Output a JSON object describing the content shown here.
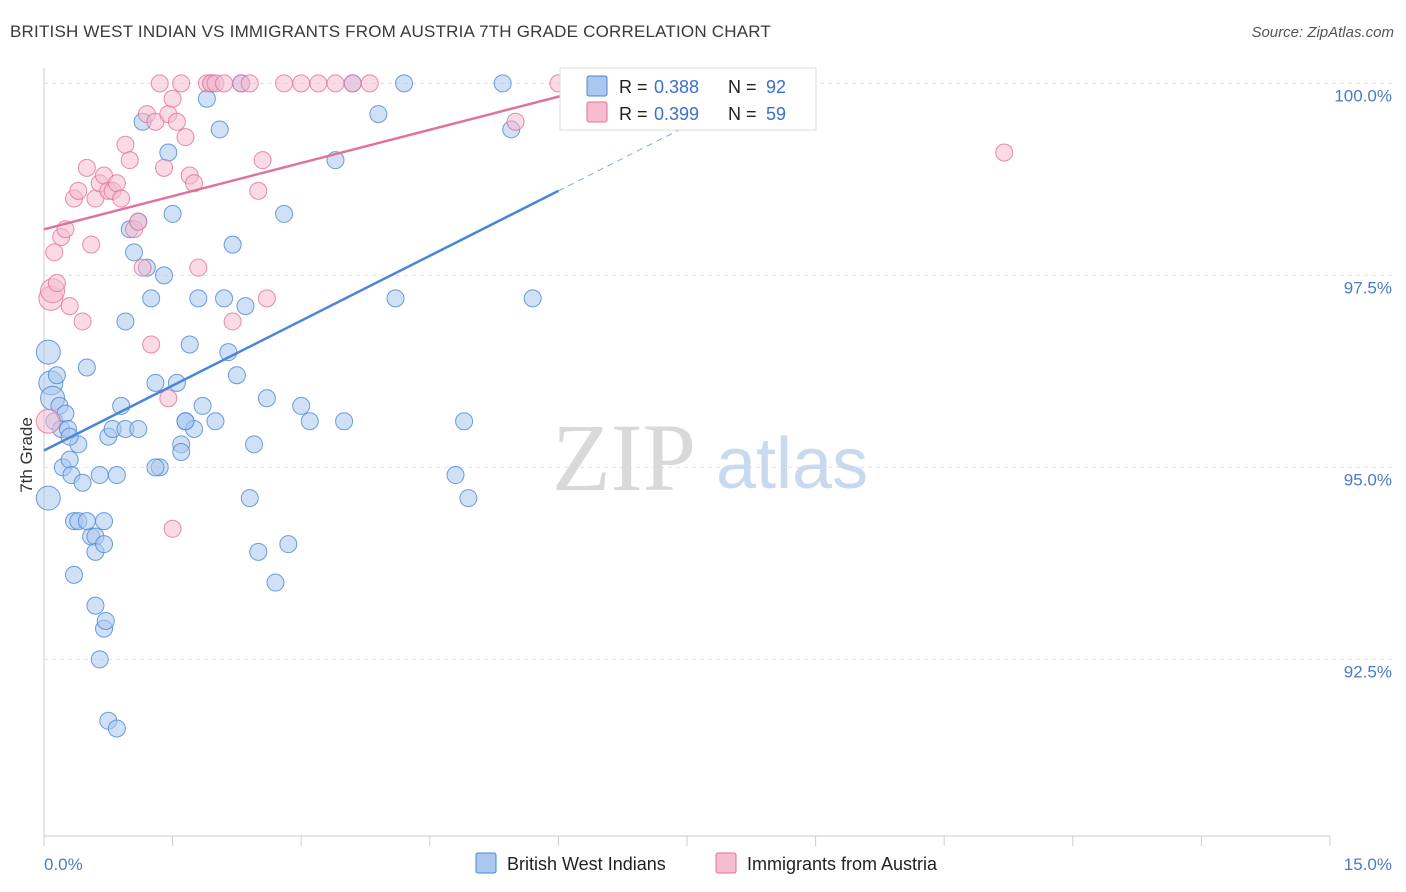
{
  "title": "BRITISH WEST INDIAN VS IMMIGRANTS FROM AUSTRIA 7TH GRADE CORRELATION CHART",
  "source": "Source: ZipAtlas.com",
  "watermark": {
    "zip": "ZIP",
    "atlas": "atlas"
  },
  "chart_data": {
    "type": "scatter",
    "title": "BRITISH WEST INDIAN VS IMMIGRANTS FROM AUSTRIA 7TH GRADE CORRELATION CHART",
    "xlabel": "",
    "ylabel": "7th Grade",
    "xlim": [
      0.0,
      15.0
    ],
    "ylim": [
      90.2,
      100.2
    ],
    "x_tick_labels": {
      "left": "0.0%",
      "right": "15.0%"
    },
    "y_ticks": [
      {
        "value": 100.0,
        "label": "100.0%"
      },
      {
        "value": 97.5,
        "label": "97.5%"
      },
      {
        "value": 95.0,
        "label": "95.0%"
      },
      {
        "value": 92.5,
        "label": "92.5%"
      }
    ],
    "legend_position": "top-center",
    "series": [
      {
        "name": "British West Indians",
        "color": "#4a86d8",
        "fill": "#aac8ee",
        "R": "0.388",
        "N": "92",
        "trend": {
          "x0": 0.0,
          "y0": 95.22,
          "x1": 6.0,
          "y1": 98.6,
          "dash_to_x": 8.2
        },
        "points": [
          [
            0.05,
            96.5
          ],
          [
            0.08,
            96.1
          ],
          [
            0.1,
            95.9
          ],
          [
            0.12,
            95.6
          ],
          [
            0.15,
            96.2
          ],
          [
            0.18,
            95.8
          ],
          [
            0.2,
            95.5
          ],
          [
            0.22,
            95.0
          ],
          [
            0.25,
            95.7
          ],
          [
            0.28,
            95.5
          ],
          [
            0.3,
            95.1
          ],
          [
            0.32,
            94.9
          ],
          [
            0.35,
            94.3
          ],
          [
            0.4,
            94.3
          ],
          [
            0.45,
            94.8
          ],
          [
            0.5,
            96.3
          ],
          [
            0.55,
            94.1
          ],
          [
            0.6,
            94.1
          ],
          [
            0.65,
            94.9
          ],
          [
            0.7,
            94.3
          ],
          [
            0.75,
            95.4
          ],
          [
            0.8,
            95.5
          ],
          [
            0.85,
            94.9
          ],
          [
            0.9,
            95.8
          ],
          [
            0.95,
            96.9
          ],
          [
            1.0,
            98.1
          ],
          [
            1.05,
            97.8
          ],
          [
            1.1,
            98.2
          ],
          [
            1.15,
            99.5
          ],
          [
            1.2,
            97.6
          ],
          [
            1.25,
            97.2
          ],
          [
            1.3,
            96.1
          ],
          [
            1.35,
            95.0
          ],
          [
            1.4,
            97.5
          ],
          [
            1.45,
            99.1
          ],
          [
            1.5,
            98.3
          ],
          [
            1.55,
            96.1
          ],
          [
            1.6,
            95.3
          ],
          [
            1.65,
            95.6
          ],
          [
            1.7,
            96.6
          ],
          [
            1.75,
            95.5
          ],
          [
            1.8,
            97.2
          ],
          [
            1.85,
            95.8
          ],
          [
            1.9,
            99.8
          ],
          [
            1.95,
            100.0
          ],
          [
            2.0,
            95.6
          ],
          [
            2.05,
            99.4
          ],
          [
            2.1,
            97.2
          ],
          [
            2.15,
            96.5
          ],
          [
            2.2,
            97.9
          ],
          [
            2.25,
            96.2
          ],
          [
            2.3,
            100.0
          ],
          [
            2.35,
            97.1
          ],
          [
            2.4,
            94.6
          ],
          [
            2.45,
            95.3
          ],
          [
            2.5,
            93.9
          ],
          [
            2.6,
            95.9
          ],
          [
            2.7,
            93.5
          ],
          [
            2.8,
            98.3
          ],
          [
            2.85,
            94.0
          ],
          [
            3.0,
            95.8
          ],
          [
            3.1,
            95.6
          ],
          [
            3.4,
            99.0
          ],
          [
            3.5,
            95.6
          ],
          [
            3.6,
            100.0
          ],
          [
            3.9,
            99.6
          ],
          [
            4.1,
            97.2
          ],
          [
            4.2,
            100.0
          ],
          [
            4.8,
            94.9
          ],
          [
            4.9,
            95.6
          ],
          [
            4.95,
            94.6
          ],
          [
            5.35,
            100.0
          ],
          [
            5.45,
            99.4
          ],
          [
            5.7,
            97.2
          ],
          [
            0.35,
            93.6
          ],
          [
            0.6,
            93.2
          ],
          [
            0.7,
            92.9
          ],
          [
            0.65,
            92.5
          ],
          [
            0.72,
            93.0
          ],
          [
            0.75,
            91.7
          ],
          [
            0.85,
            91.6
          ],
          [
            0.95,
            95.5
          ],
          [
            1.1,
            95.5
          ],
          [
            1.3,
            95.0
          ],
          [
            1.6,
            95.2
          ],
          [
            1.65,
            95.6
          ],
          [
            0.5,
            94.3
          ],
          [
            0.4,
            95.3
          ],
          [
            0.3,
            95.4
          ],
          [
            0.6,
            93.9
          ],
          [
            0.7,
            94.0
          ],
          [
            0.05,
            94.6
          ]
        ]
      },
      {
        "name": "Immigrants from Austria",
        "color": "#e0729a",
        "fill": "#f6bcd0",
        "R": "0.399",
        "N": "59",
        "trend": {
          "x0": 0.0,
          "y0": 98.1,
          "x1": 6.6,
          "y1": 100.0
        },
        "points": [
          [
            0.05,
            95.6
          ],
          [
            0.08,
            97.2
          ],
          [
            0.1,
            97.3
          ],
          [
            0.12,
            97.8
          ],
          [
            0.15,
            97.4
          ],
          [
            0.2,
            98.0
          ],
          [
            0.25,
            98.1
          ],
          [
            0.3,
            97.1
          ],
          [
            0.35,
            98.5
          ],
          [
            0.4,
            98.6
          ],
          [
            0.45,
            96.9
          ],
          [
            0.5,
            98.9
          ],
          [
            0.55,
            97.9
          ],
          [
            0.6,
            98.5
          ],
          [
            0.65,
            98.7
          ],
          [
            0.7,
            98.8
          ],
          [
            0.75,
            98.6
          ],
          [
            0.8,
            98.6
          ],
          [
            0.85,
            98.7
          ],
          [
            0.9,
            98.5
          ],
          [
            0.95,
            99.2
          ],
          [
            1.0,
            99.0
          ],
          [
            1.05,
            98.1
          ],
          [
            1.1,
            98.2
          ],
          [
            1.15,
            97.6
          ],
          [
            1.2,
            99.6
          ],
          [
            1.25,
            96.6
          ],
          [
            1.3,
            99.5
          ],
          [
            1.35,
            100.0
          ],
          [
            1.4,
            98.9
          ],
          [
            1.45,
            99.6
          ],
          [
            1.5,
            99.8
          ],
          [
            1.55,
            99.5
          ],
          [
            1.6,
            100.0
          ],
          [
            1.65,
            99.3
          ],
          [
            1.7,
            98.8
          ],
          [
            1.75,
            98.7
          ],
          [
            1.8,
            97.6
          ],
          [
            1.9,
            100.0
          ],
          [
            1.95,
            100.0
          ],
          [
            2.0,
            100.0
          ],
          [
            2.1,
            100.0
          ],
          [
            2.2,
            96.9
          ],
          [
            2.3,
            100.0
          ],
          [
            2.4,
            100.0
          ],
          [
            2.5,
            98.6
          ],
          [
            2.55,
            99.0
          ],
          [
            2.6,
            97.2
          ],
          [
            2.8,
            100.0
          ],
          [
            3.0,
            100.0
          ],
          [
            3.2,
            100.0
          ],
          [
            3.4,
            100.0
          ],
          [
            3.6,
            100.0
          ],
          [
            3.8,
            100.0
          ],
          [
            5.5,
            99.5
          ],
          [
            6.0,
            100.0
          ],
          [
            11.2,
            99.1
          ],
          [
            1.5,
            94.2
          ],
          [
            1.45,
            95.9
          ]
        ]
      }
    ]
  }
}
